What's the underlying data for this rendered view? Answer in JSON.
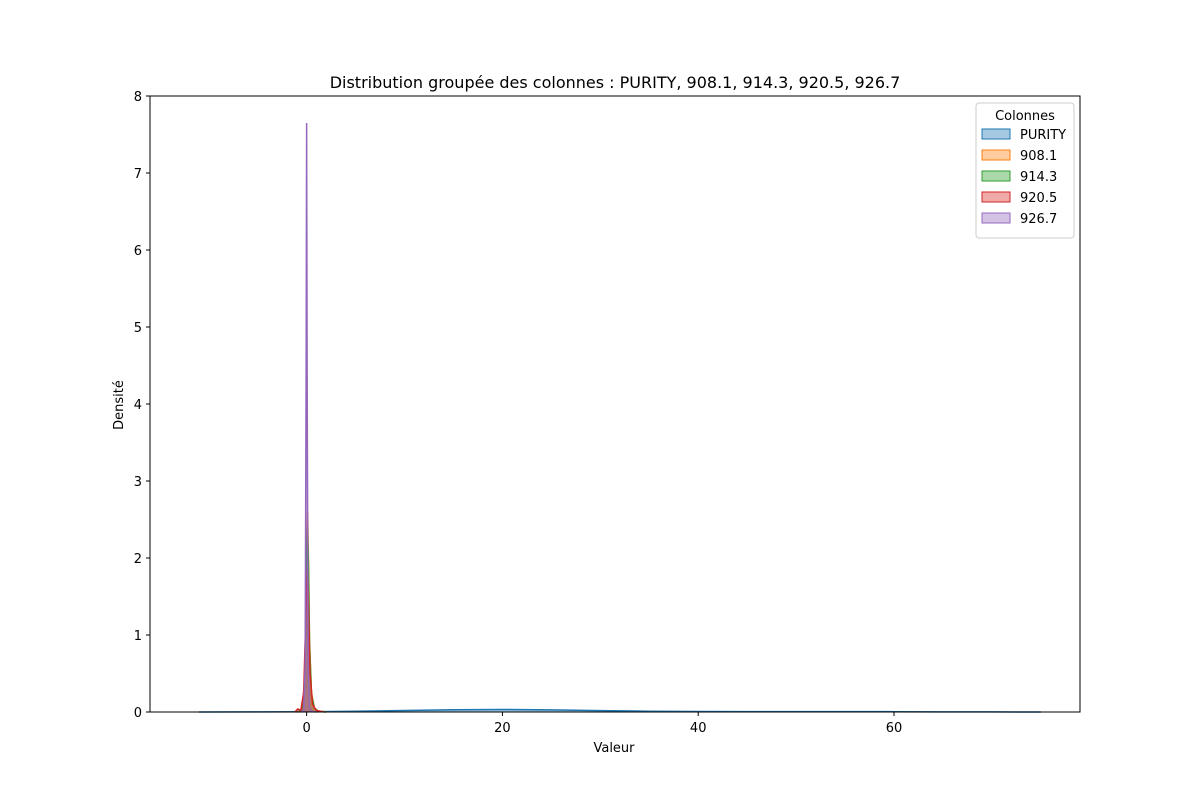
{
  "chart_data": {
    "type": "area",
    "title": "Distribution groupée des colonnes : PURITY, 908.1, 914.3, 920.5, 926.7",
    "xlabel": "Valeur",
    "ylabel": "Densité",
    "xlim": [
      -16,
      79
    ],
    "ylim": [
      0,
      8
    ],
    "grid": false,
    "x_ticks": [
      0,
      20,
      40,
      60
    ],
    "x_tick_labels": [
      "0",
      "20",
      "40",
      "60"
    ],
    "y_ticks": [
      0,
      1,
      2,
      3,
      4,
      5,
      6,
      7,
      8
    ],
    "y_tick_labels": [
      "0",
      "1",
      "2",
      "3",
      "4",
      "5",
      "6",
      "7",
      "8"
    ],
    "legend": {
      "title": "Colonnes",
      "position": "top-right"
    },
    "series": [
      {
        "name": "PURITY",
        "color": "#1f77b4",
        "fill_opacity": 0.4,
        "x": [
          -11,
          -5,
          0,
          5,
          10,
          15,
          20,
          25,
          30,
          35,
          40,
          45,
          50,
          55,
          60,
          65,
          70,
          75
        ],
        "y": [
          0,
          0.001,
          0.003,
          0.01,
          0.02,
          0.03,
          0.033,
          0.028,
          0.018,
          0.01,
          0.006,
          0.005,
          0.005,
          0.005,
          0.004,
          0.002,
          0.001,
          0
        ]
      },
      {
        "name": "908.1",
        "color": "#ff7f0e",
        "fill_opacity": 0.4,
        "x": [
          -1,
          -0.5,
          -0.2,
          0,
          0.1,
          0.2,
          0.3,
          0.5,
          0.8,
          1.2,
          2
        ],
        "y": [
          0,
          0.02,
          0.4,
          2.2,
          2.6,
          1.9,
          0.9,
          0.25,
          0.05,
          0.01,
          0
        ]
      },
      {
        "name": "914.3",
        "color": "#2ca02c",
        "fill_opacity": 0.4,
        "x": [
          -1,
          -0.5,
          -0.2,
          0,
          0.1,
          0.2,
          0.3,
          0.5,
          0.8,
          1.2,
          2
        ],
        "y": [
          0,
          0.02,
          0.35,
          2.0,
          2.4,
          1.8,
          0.85,
          0.22,
          0.05,
          0.01,
          0
        ]
      },
      {
        "name": "920.5",
        "color": "#d62728",
        "fill_opacity": 0.4,
        "x": [
          -1.2,
          -0.9,
          -0.6,
          -0.3,
          0,
          0.1,
          0.2,
          0.35,
          0.6,
          1,
          1.8
        ],
        "y": [
          0,
          0.04,
          0.02,
          0.25,
          1.6,
          1.9,
          1.3,
          0.5,
          0.1,
          0.02,
          0
        ]
      },
      {
        "name": "926.7",
        "color": "#9467bd",
        "fill_opacity": 0.4,
        "x": [
          -0.6,
          -0.3,
          -0.15,
          -0.05,
          0,
          0.05,
          0.15,
          0.3,
          0.6,
          1
        ],
        "y": [
          0,
          0.02,
          0.6,
          4.5,
          7.65,
          4.5,
          0.6,
          0.05,
          0.005,
          0
        ]
      }
    ]
  }
}
